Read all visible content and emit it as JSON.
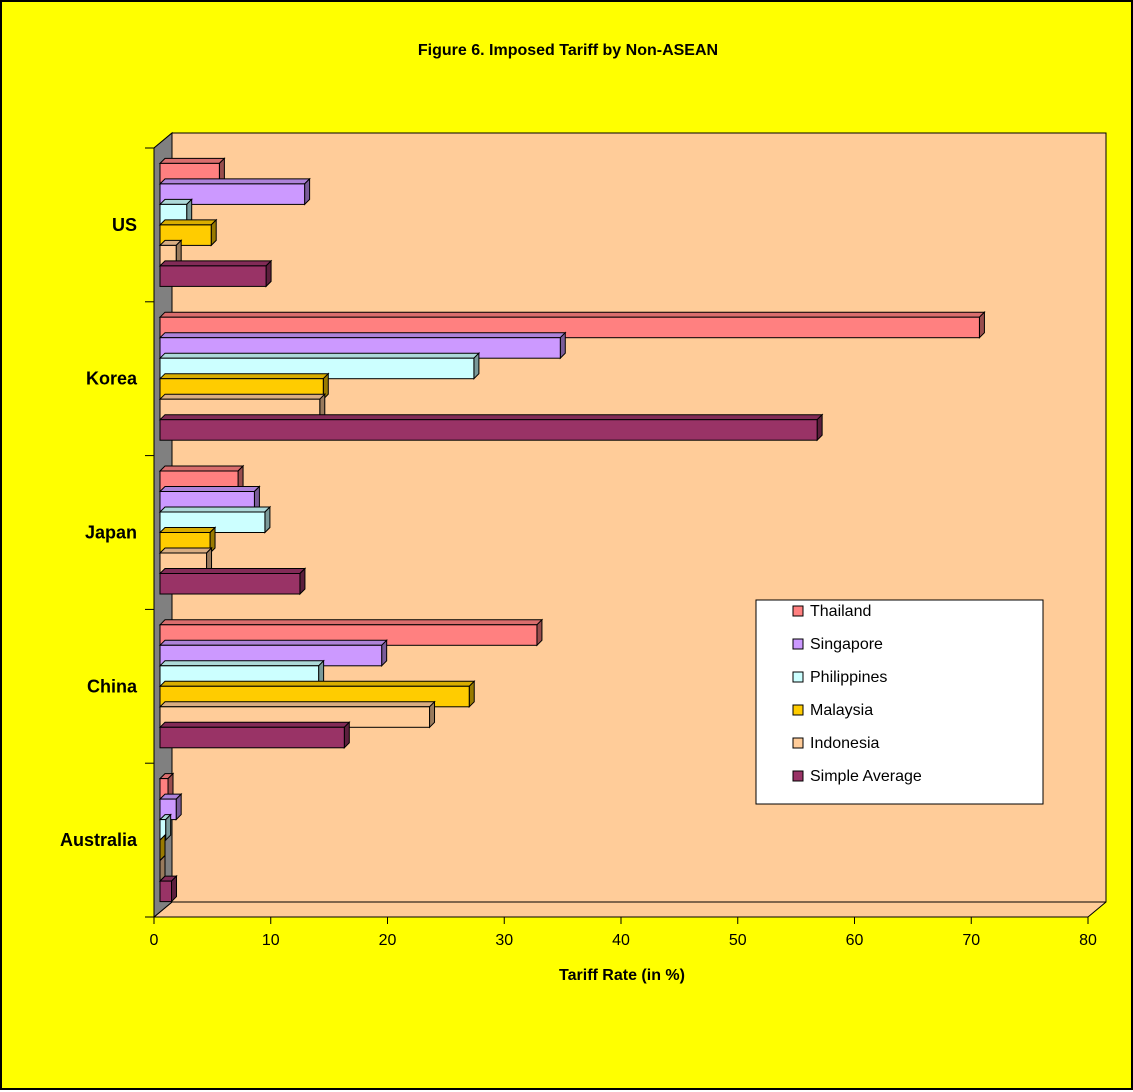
{
  "chart_data": {
    "type": "bar",
    "orientation": "horizontal",
    "title": "Figure 6. Imposed Tariff by Non-ASEAN",
    "xlabel": "Tariff Rate (in %)",
    "ylabel": "",
    "xlim": [
      0,
      80
    ],
    "x_ticks": [
      "0",
      "10",
      "20",
      "30",
      "40",
      "50",
      "60",
      "70",
      "80"
    ],
    "categories": [
      "Australia",
      "China",
      "Japan",
      "Korea",
      "US"
    ],
    "series": [
      {
        "name": "Thailand",
        "color": "#ff8080",
        "values": [
          1.2,
          32.8,
          7.2,
          70.7,
          5.6
        ]
      },
      {
        "name": "Singapore",
        "color": "#cc99ff",
        "values": [
          1.9,
          19.5,
          8.6,
          34.8,
          12.9
        ]
      },
      {
        "name": "Philippines",
        "color": "#ccffff",
        "values": [
          1.0,
          14.1,
          9.5,
          27.4,
          2.8
        ]
      },
      {
        "name": "Malaysia",
        "color": "#ffcc00",
        "values": [
          0.4,
          27.0,
          4.8,
          14.5,
          4.9
        ]
      },
      {
        "name": "Indonesia",
        "color": "#ffcc99",
        "values": [
          0.3,
          23.6,
          4.5,
          14.2,
          1.9
        ]
      },
      {
        "name": "Simple Average",
        "color": "#993366",
        "values": [
          1.5,
          16.3,
          12.5,
          56.8,
          9.6
        ]
      }
    ],
    "legend_position": "right",
    "grid": false,
    "plot_background": "#ffcc99",
    "page_background": "#ffff00",
    "wall_color": "#808080"
  }
}
